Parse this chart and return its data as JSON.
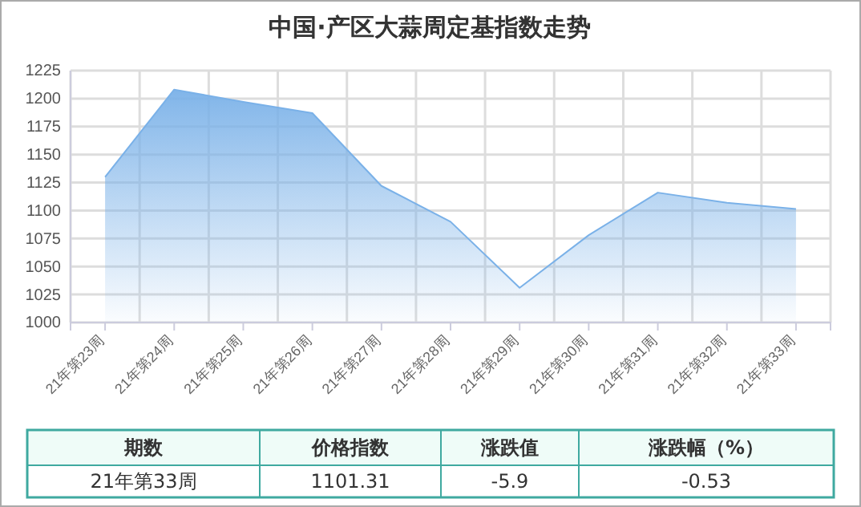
{
  "chart_data": {
    "type": "area",
    "title": "中国·产区大蒜周定基指数走势",
    "categories": [
      "21年第23周",
      "21年第24周",
      "21年第25周",
      "21年第26周",
      "21年第27周",
      "21年第28周",
      "21年第29周",
      "21年第30周",
      "21年第31周",
      "21年第32周",
      "21年第33周"
    ],
    "series": [
      {
        "color": "#7ab1e8",
        "values": [
          1130,
          1208,
          1197,
          1187,
          1122,
          1090,
          1031,
          1078,
          1116,
          1107,
          1101.31
        ]
      }
    ],
    "ylim": [
      1000,
      1225
    ],
    "yticks": [
      1000,
      1025,
      1050,
      1075,
      1100,
      1125,
      1150,
      1175,
      1200,
      1225
    ],
    "grid": true,
    "annotations": [
      "期数",
      "价格指数",
      "涨跌值",
      "涨跌幅（%）",
      "21年第33周",
      "1101.31",
      "-5.9",
      "-0.53"
    ]
  }
}
